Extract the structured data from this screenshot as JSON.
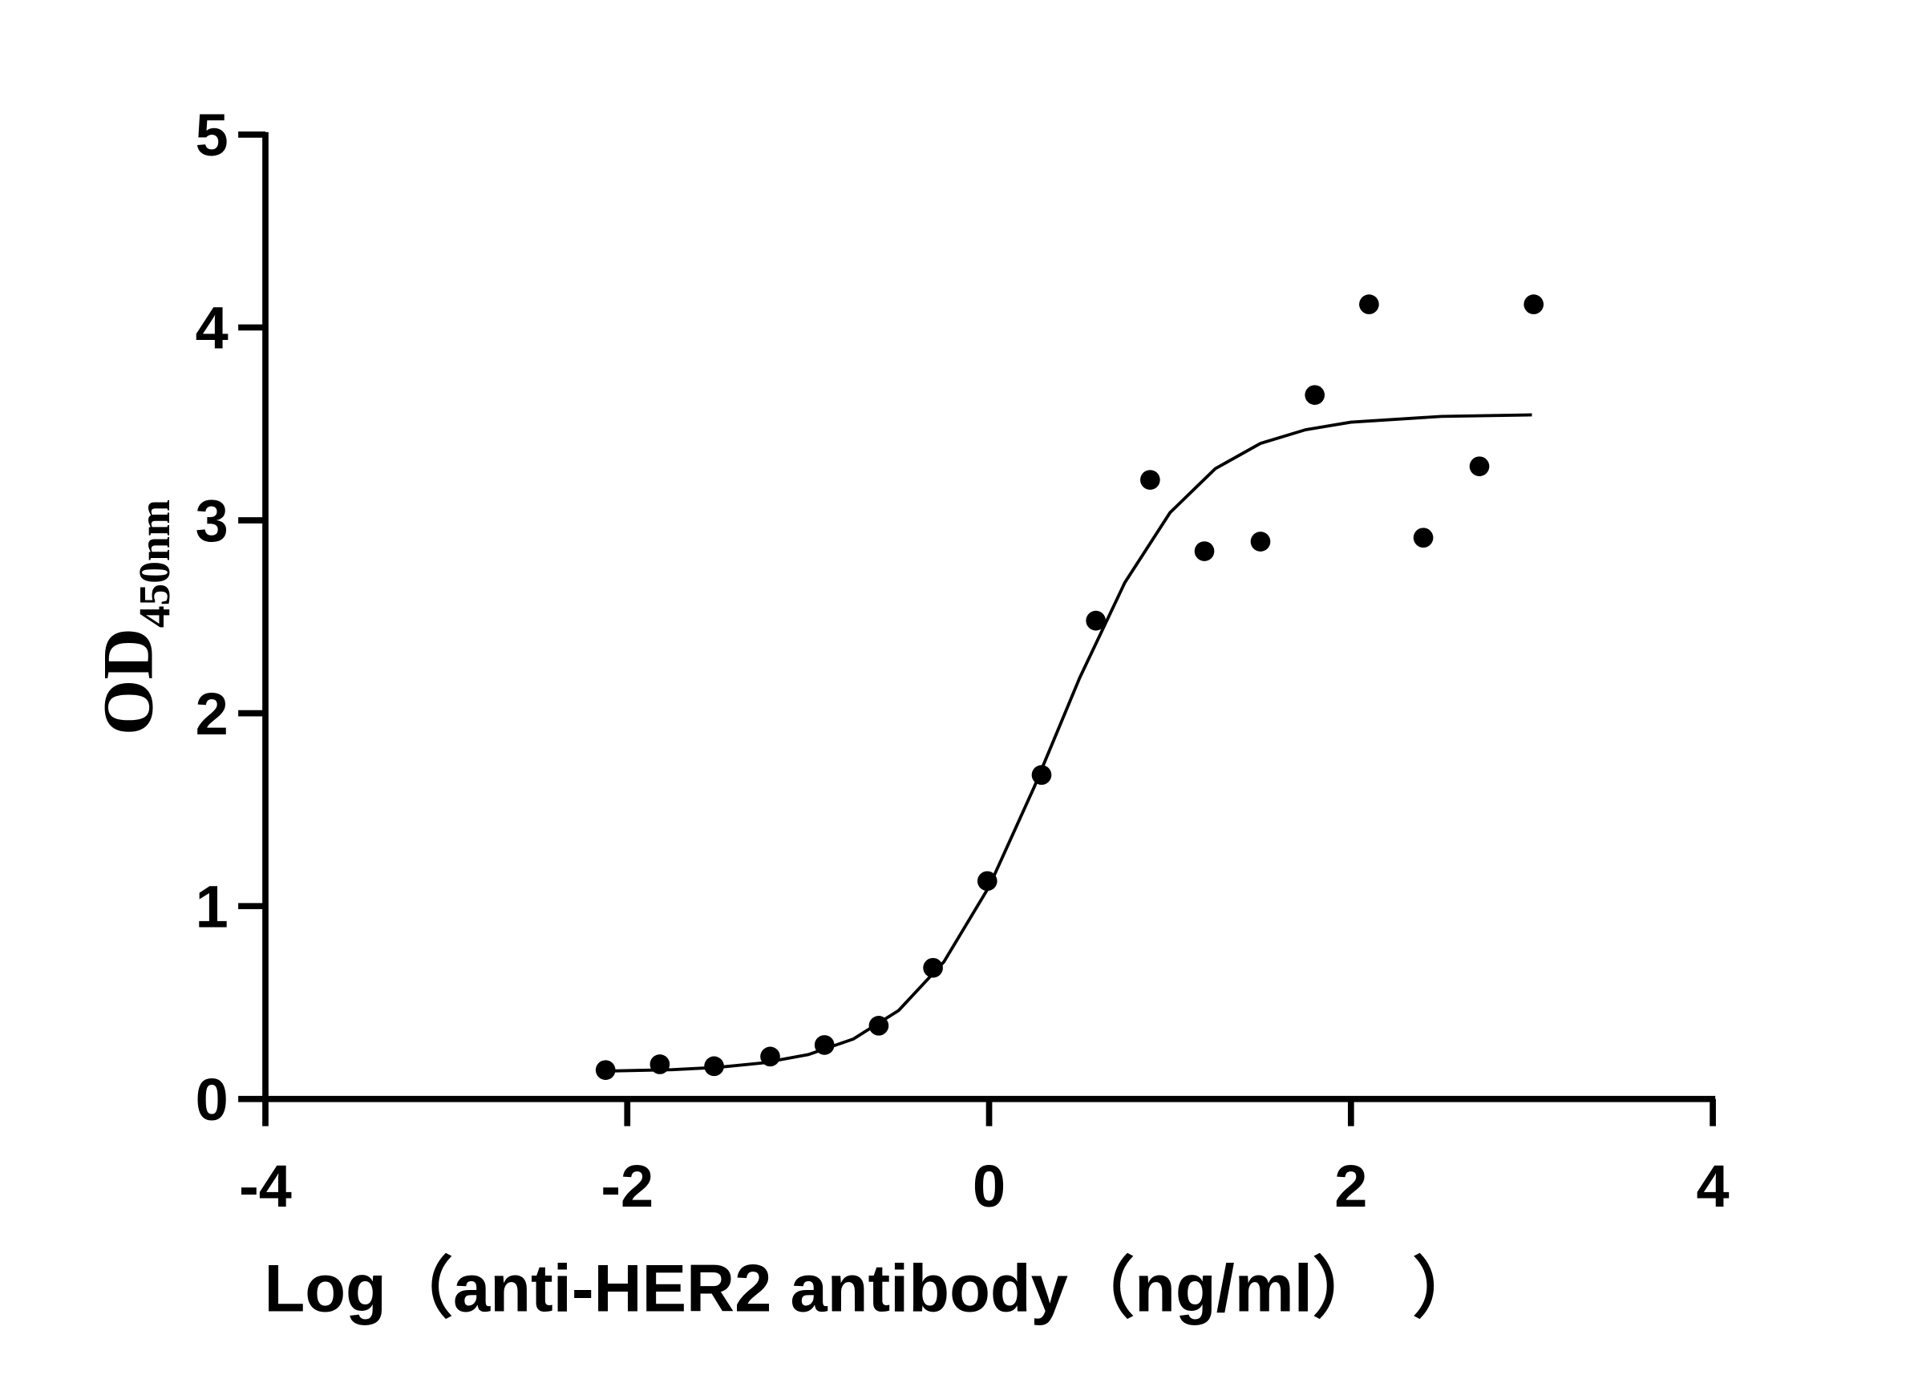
{
  "chart_data": {
    "type": "scatter",
    "x_label": "Log（anti-HER2 antibody（ng/ml）　）",
    "y_label": "OD",
    "y_label_subscript": "450nm",
    "x": [
      -2.12,
      -1.82,
      -1.52,
      -1.21,
      -0.91,
      -0.61,
      -0.31,
      -0.01,
      0.29,
      0.59,
      0.89,
      1.19,
      1.5,
      1.8,
      2.1,
      2.4,
      2.71,
      3.01
    ],
    "values": [
      0.15,
      0.18,
      0.17,
      0.22,
      0.28,
      0.38,
      0.68,
      1.13,
      1.68,
      2.48,
      3.21,
      2.84,
      2.89,
      3.65,
      4.12,
      2.91,
      3.28,
      4.12
    ],
    "color": "#000000",
    "fit": {
      "x": [
        -2.1,
        -1.75,
        -1.5,
        -1.25,
        -1.0,
        -0.75,
        -0.5,
        -0.25,
        0,
        0.25,
        0.5,
        0.75,
        1.0,
        1.25,
        1.5,
        1.75,
        2.0,
        2.5,
        3.0
      ],
      "values": [
        0.145,
        0.152,
        0.164,
        0.187,
        0.23,
        0.311,
        0.459,
        0.711,
        1.101,
        1.619,
        2.182,
        2.677,
        3.04,
        3.268,
        3.399,
        3.47,
        3.509,
        3.539,
        3.547
      ]
    },
    "xlim": [
      -4,
      4
    ],
    "xticks": [
      -4,
      -2,
      0,
      2,
      4
    ],
    "ylim": [
      0,
      5
    ],
    "yticks": [
      0,
      1,
      2,
      3,
      4,
      5
    ],
    "grid": false
  }
}
